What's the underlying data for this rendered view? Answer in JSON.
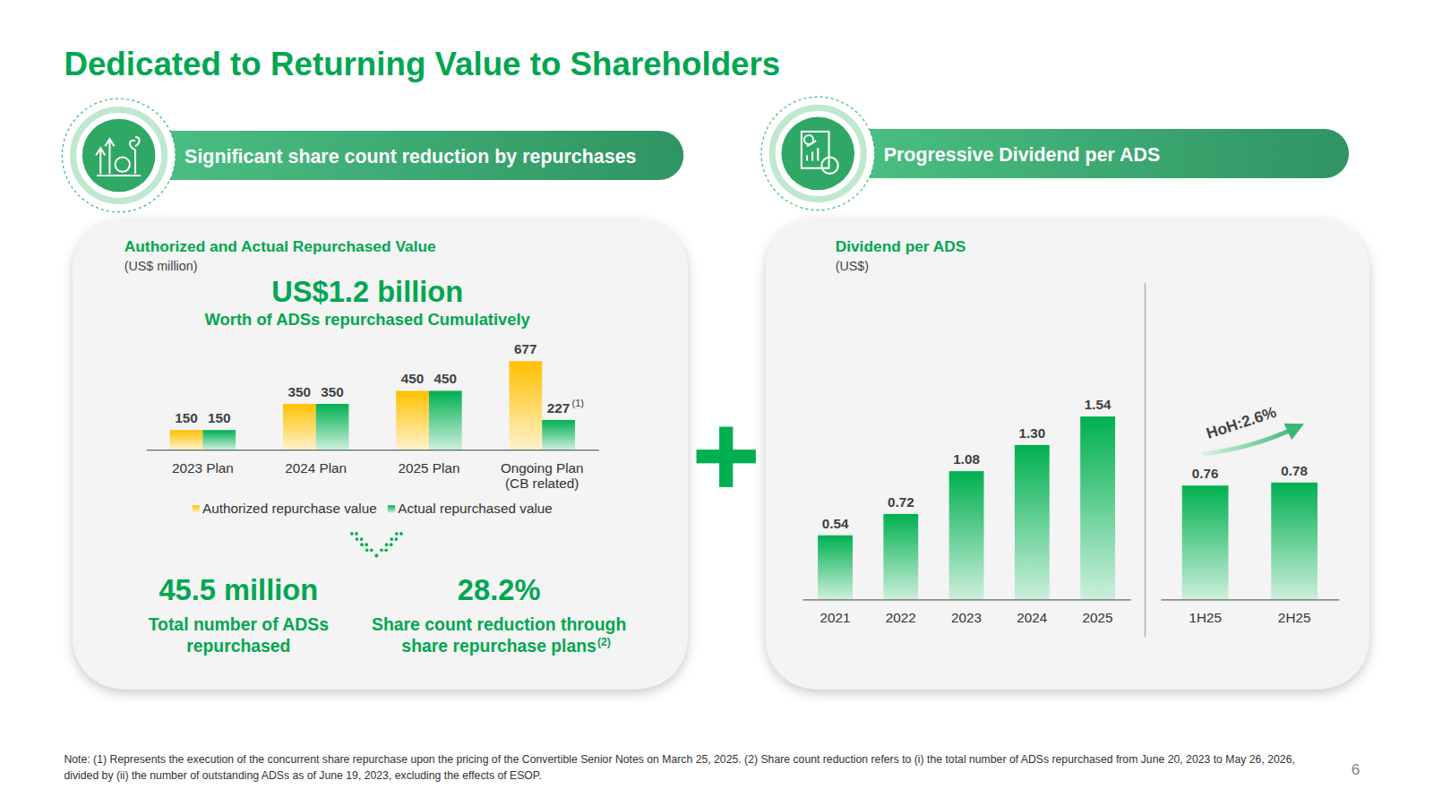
{
  "title": "Dedicated to Returning Value to Shareholders",
  "left_panel": {
    "banner": "Significant share count reduction by repurchases",
    "headline": "US$1.2 billion",
    "headline_caption": "Worth of ADSs repurchased Cumulatively",
    "stats": [
      {
        "value": "45.5 million",
        "caption": "Total number of ADSs repurchased"
      },
      {
        "value": "28.2%",
        "caption": "Share count reduction through share repurchase plans",
        "caption_note": "(2)"
      }
    ]
  },
  "right_panel": {
    "banner": "Progressive Dividend per ADS"
  },
  "chart_data": [
    {
      "type": "bar",
      "title": "Authorized and Actual Repurchased Value",
      "subtitle": "(US$ million)",
      "categories": [
        "2023 Plan",
        "2024 Plan",
        "2025 Plan",
        "Ongoing Plan (CB related)"
      ],
      "series": [
        {
          "name": "Authorized repurchase value",
          "color": "#ffc000",
          "values": [
            150,
            350,
            450,
            677
          ]
        },
        {
          "name": "Actual repurchased value",
          "color": "#00b050",
          "values": [
            150,
            350,
            450,
            227
          ],
          "label_notes": [
            null,
            null,
            null,
            "(1)"
          ]
        }
      ],
      "ylim": [
        0,
        700
      ],
      "data_labels": true,
      "legend": "bottom",
      "tick_labels": "x"
    },
    {
      "type": "bar",
      "title": "Dividend per ADS",
      "subtitle": "(US$)",
      "categories": [
        "2021",
        "2022",
        "2023",
        "2024",
        "2025"
      ],
      "values": [
        0.54,
        0.72,
        1.08,
        1.3,
        1.54
      ],
      "value_labels": [
        "0.54",
        "0.72",
        "1.08",
        "1.30",
        "1.54"
      ],
      "color": "#00b050",
      "ylim": [
        0,
        1.7
      ],
      "data_labels": true,
      "tick_labels": "x"
    },
    {
      "type": "bar",
      "annotation": "HoH:2.6%",
      "categories": [
        "1H25",
        "2H25"
      ],
      "values": [
        0.76,
        0.78
      ],
      "color": "#00b050",
      "ylim": [
        0,
        1.0
      ],
      "data_labels": true,
      "tick_labels": "x"
    }
  ],
  "note": "Note: (1) Represents the execution of the concurrent share repurchase upon the pricing of the Convertible Senior Notes on March 25, 2025. (2) Share count reduction refers to (i) the total number of ADSs repurchased from June 20, 2023 to May 26, 2026, divided by (ii) the number of outstanding ADSs as of June 19, 2023, excluding the effects of ESOP.",
  "page_number": 6
}
